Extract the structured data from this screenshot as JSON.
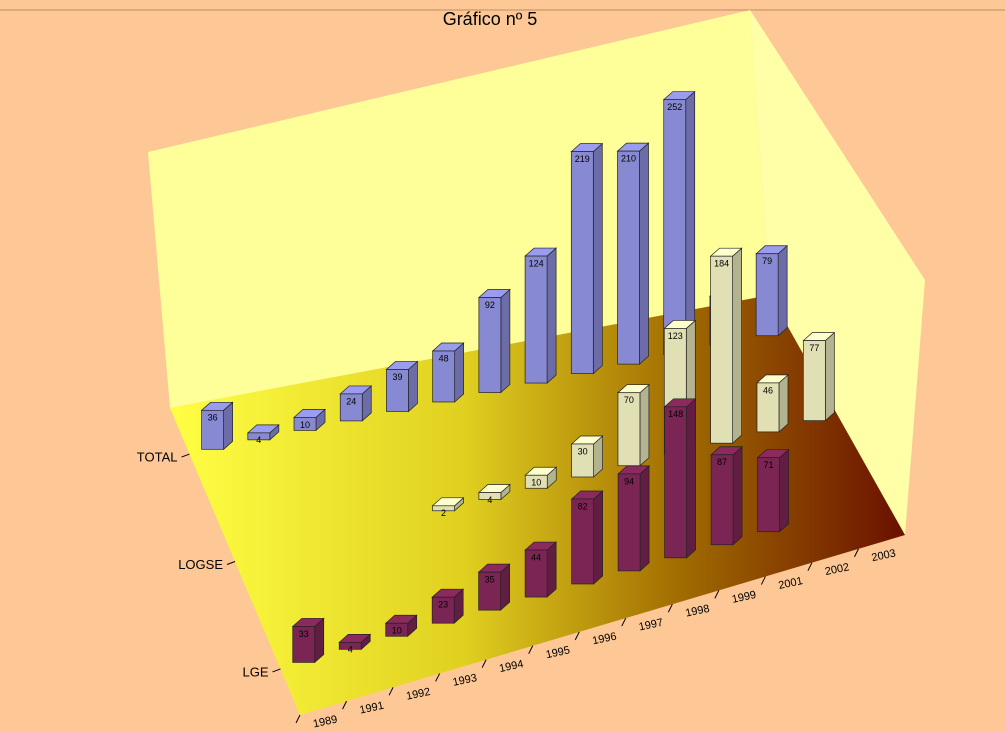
{
  "chart_data": {
    "type": "bar3d",
    "title": "Gráfico nº 5",
    "categories": [
      "1989",
      "1991",
      "1992",
      "1993",
      "1994",
      "1995",
      "1996",
      "1997",
      "1998",
      "1999",
      "2001",
      "2002",
      "2003"
    ],
    "series": [
      {
        "name": "TOTAL",
        "color": "#9a9cf0",
        "values": [
          36,
          4,
          10,
          24,
          39,
          48,
          92,
          124,
          219,
          210,
          252,
          46,
          79
        ]
      },
      {
        "name": "LOGSE",
        "color": "#ffffcc",
        "values": [
          null,
          null,
          null,
          null,
          2,
          4,
          10,
          30,
          70,
          123,
          184,
          46,
          77
        ]
      },
      {
        "name": "LGE",
        "color": "#8c2a60",
        "values": [
          33,
          4,
          10,
          23,
          35,
          44,
          82,
          94,
          148,
          87,
          71,
          null,
          null
        ]
      }
    ]
  }
}
